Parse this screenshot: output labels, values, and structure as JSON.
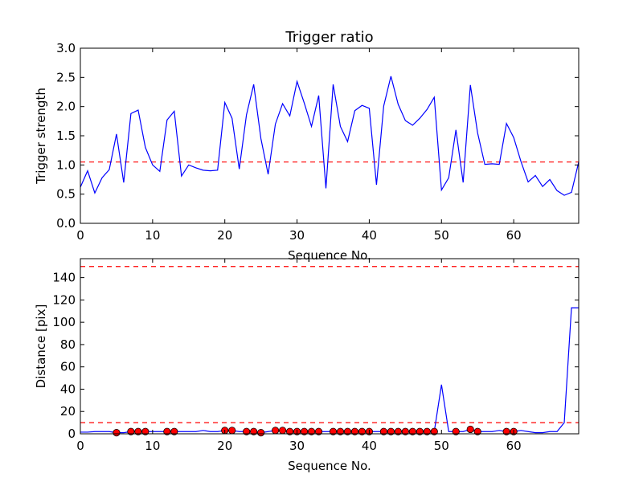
{
  "chart_data": [
    {
      "type": "line",
      "title": "Trigger ratio",
      "xlabel": "Sequence No.",
      "ylabel": "Trigger strength",
      "xlim": [
        0,
        69
      ],
      "ylim": [
        0,
        3.0
      ],
      "xticks": [
        0,
        10,
        20,
        30,
        40,
        50,
        60
      ],
      "yticks": [
        0.0,
        0.5,
        1.0,
        1.5,
        2.0,
        2.5,
        3.0
      ],
      "ytick_labels": [
        "0.0",
        "0.5",
        "1.0",
        "1.5",
        "2.0",
        "2.5",
        "3.0"
      ],
      "series": [
        {
          "color": "#0000ff",
          "x": [
            0,
            1,
            2,
            3,
            4,
            5,
            6,
            7,
            8,
            9,
            10,
            11,
            12,
            13,
            14,
            15,
            16,
            17,
            18,
            19,
            20,
            21,
            22,
            23,
            24,
            25,
            26,
            27,
            28,
            29,
            30,
            31,
            32,
            33,
            34,
            35,
            36,
            37,
            38,
            39,
            40,
            41,
            42,
            43,
            44,
            45,
            46,
            47,
            48,
            49,
            50,
            51,
            52,
            53,
            54,
            55,
            56,
            57,
            58,
            59,
            60,
            61,
            62,
            63,
            64,
            65,
            66,
            67,
            68,
            69
          ],
          "y": [
            0.62,
            0.9,
            0.52,
            0.78,
            0.92,
            1.53,
            0.7,
            1.88,
            1.94,
            1.3,
            1.0,
            0.89,
            1.77,
            1.92,
            0.81,
            1.0,
            0.95,
            0.91,
            0.9,
            0.91,
            2.07,
            1.8,
            0.93,
            1.86,
            2.38,
            1.45,
            0.84,
            1.7,
            2.05,
            1.84,
            2.43,
            2.06,
            1.66,
            2.19,
            0.6,
            2.38,
            1.66,
            1.4,
            1.93,
            2.02,
            1.97,
            0.66,
            2.01,
            2.52,
            2.04,
            1.76,
            1.68,
            1.8,
            1.95,
            2.16,
            0.57,
            0.78,
            1.6,
            0.7,
            2.37,
            1.55,
            1.01,
            1.02,
            1.01,
            1.71,
            1.47,
            1.06,
            0.71,
            0.82,
            0.63,
            0.75,
            0.56,
            0.48,
            0.53,
            1.05
          ]
        }
      ],
      "threshold": {
        "value": 1.05,
        "color": "#ff0000",
        "style": "dashed"
      },
      "grid": false
    },
    {
      "type": "line",
      "title": "",
      "xlabel": "Sequence No.",
      "ylabel": "Distance [pix]",
      "xlim": [
        0,
        69
      ],
      "ylim": [
        0,
        157
      ],
      "xticks": [
        0,
        10,
        20,
        30,
        40,
        50,
        60
      ],
      "yticks": [
        0,
        20,
        40,
        60,
        80,
        100,
        120,
        140
      ],
      "ytick_labels": [
        "0",
        "20",
        "40",
        "60",
        "80",
        "100",
        "120",
        "140"
      ],
      "series": [
        {
          "color": "#0000ff",
          "x": [
            0,
            1,
            2,
            3,
            4,
            5,
            6,
            7,
            8,
            9,
            10,
            11,
            12,
            13,
            14,
            15,
            16,
            17,
            18,
            19,
            20,
            21,
            22,
            23,
            24,
            25,
            26,
            27,
            28,
            29,
            30,
            31,
            32,
            33,
            34,
            35,
            36,
            37,
            38,
            39,
            40,
            41,
            42,
            43,
            44,
            45,
            46,
            47,
            48,
            49,
            50,
            51,
            52,
            53,
            54,
            55,
            56,
            57,
            58,
            59,
            60,
            61,
            62,
            63,
            64,
            65,
            66,
            67,
            68,
            69
          ],
          "y": [
            1.5,
            1.5,
            2,
            2,
            2,
            1,
            1,
            2,
            2,
            2,
            2,
            2,
            2,
            2,
            2,
            2,
            2,
            3,
            2,
            2,
            3,
            3,
            2,
            2,
            2,
            1,
            2,
            3,
            3,
            2,
            2,
            2,
            2,
            2,
            2,
            2,
            2,
            2,
            2,
            2,
            2,
            2,
            2,
            2,
            2,
            2,
            2,
            2,
            2,
            2,
            44,
            2,
            2,
            2,
            4,
            2,
            2,
            2,
            3,
            2,
            2,
            3,
            2,
            1,
            1,
            2,
            2,
            10,
            113,
            113
          ]
        }
      ],
      "markers": {
        "color": "#ff0000",
        "x": [
          5,
          7,
          8,
          9,
          12,
          13,
          20,
          21,
          23,
          24,
          25,
          27,
          28,
          29,
          30,
          31,
          32,
          33,
          35,
          36,
          37,
          38,
          39,
          40,
          42,
          43,
          44,
          45,
          46,
          47,
          48,
          49,
          52,
          54,
          55,
          59,
          60
        ],
        "y": [
          1,
          2,
          2,
          2,
          2,
          2,
          3,
          3,
          2,
          2,
          1,
          3,
          3,
          2,
          2,
          2,
          2,
          2,
          2,
          2,
          2,
          2,
          2,
          2,
          2,
          2,
          2,
          2,
          2,
          2,
          2,
          2,
          2,
          4,
          2,
          2,
          2
        ]
      },
      "thresholds": [
        {
          "value": 150,
          "color": "#ff0000",
          "style": "dashed"
        },
        {
          "value": 10,
          "color": "#ff0000",
          "style": "dashed"
        }
      ],
      "grid": false
    }
  ]
}
